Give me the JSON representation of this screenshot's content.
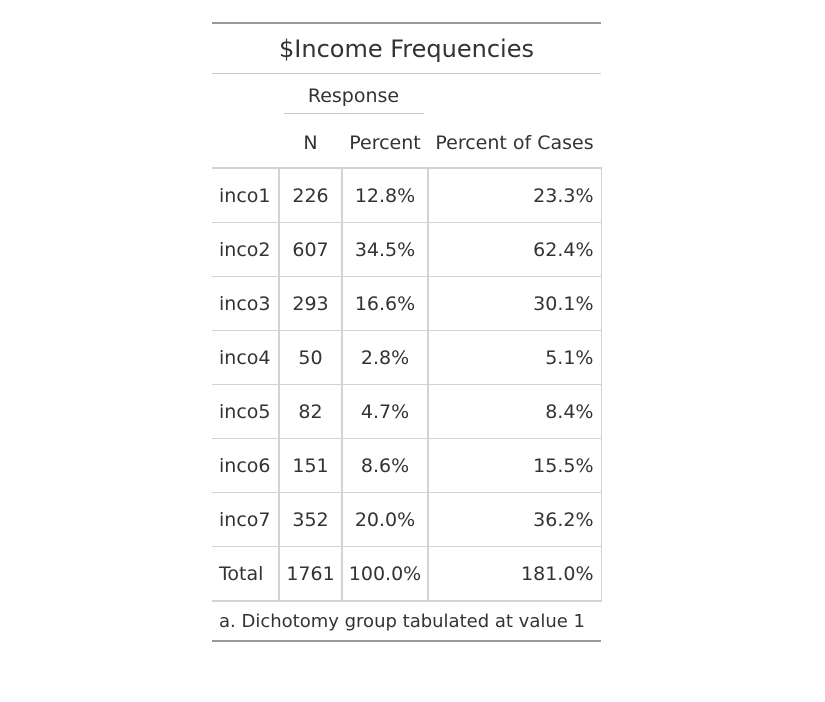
{
  "table": {
    "title": "$Income Frequencies",
    "spanner": "Response",
    "headers": {
      "n": "N",
      "percent": "Percent",
      "percent_of_cases": "Percent of Cases"
    },
    "rows": [
      {
        "label": "inco1",
        "n": "226",
        "percent": "12.8%",
        "percent_of_cases": "23.3%"
      },
      {
        "label": "inco2",
        "n": "607",
        "percent": "34.5%",
        "percent_of_cases": "62.4%"
      },
      {
        "label": "inco3",
        "n": "293",
        "percent": "16.6%",
        "percent_of_cases": "30.1%"
      },
      {
        "label": "inco4",
        "n": "50",
        "percent": "2.8%",
        "percent_of_cases": "5.1%"
      },
      {
        "label": "inco5",
        "n": "82",
        "percent": "4.7%",
        "percent_of_cases": "8.4%"
      },
      {
        "label": "inco6",
        "n": "151",
        "percent": "8.6%",
        "percent_of_cases": "15.5%"
      },
      {
        "label": "inco7",
        "n": "352",
        "percent": "20.0%",
        "percent_of_cases": "36.2%"
      },
      {
        "label": "Total",
        "n": "1761",
        "percent": "100.0%",
        "percent_of_cases": "181.0%"
      }
    ],
    "footnote": "a. Dichotomy group tabulated at value 1"
  }
}
